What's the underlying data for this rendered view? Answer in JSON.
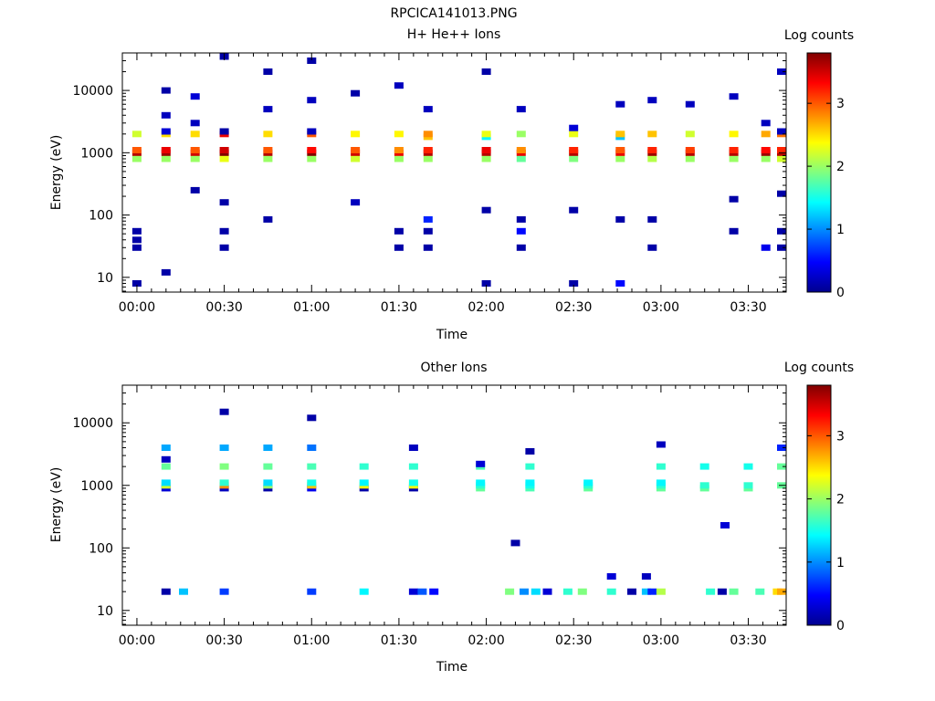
{
  "figure_title": "RPCICA141013.PNG",
  "chart_data": [
    {
      "type": "heatmap",
      "title": "H+ He++ Ions",
      "xlabel": "Time",
      "ylabel": "Energy (eV)",
      "x_unit": "minutes since 00:00",
      "xlim": [
        -5,
        223
      ],
      "y_scale": "log",
      "ylim": [
        5.8,
        40000
      ],
      "x_ticks": [
        0,
        30,
        60,
        90,
        120,
        150,
        180,
        210
      ],
      "x_tick_labels": [
        "00:00",
        "00:30",
        "01:00",
        "01:30",
        "02:00",
        "02:30",
        "03:00",
        "03:30"
      ],
      "y_ticks": [
        10,
        100,
        1000,
        10000
      ],
      "y_tick_labels": [
        "10",
        "100",
        "1000",
        "10000"
      ],
      "colorbar": {
        "label": "Log counts",
        "range": [
          0,
          3.8
        ],
        "ticks": [
          0,
          1,
          2,
          3
        ],
        "tick_labels": [
          "0",
          "1",
          "2",
          "3"
        ]
      },
      "cells": [
        [
          0,
          8,
          0.1
        ],
        [
          0,
          30,
          0.1
        ],
        [
          0,
          40,
          0.1
        ],
        [
          0,
          55,
          0.1
        ],
        [
          0,
          800,
          2.0
        ],
        [
          0,
          1000,
          3.6
        ],
        [
          0,
          1100,
          3.0
        ],
        [
          0,
          2000,
          2.2
        ],
        [
          10,
          12,
          0.1
        ],
        [
          10,
          800,
          2.0
        ],
        [
          10,
          1000,
          3.7
        ],
        [
          10,
          1100,
          3.4
        ],
        [
          10,
          2000,
          2.5
        ],
        [
          10,
          2200,
          0.3
        ],
        [
          10,
          4000,
          0.2
        ],
        [
          10,
          10000,
          0.1
        ],
        [
          20,
          250,
          0.1
        ],
        [
          20,
          800,
          2.0
        ],
        [
          20,
          1000,
          3.5
        ],
        [
          20,
          1100,
          3.0
        ],
        [
          20,
          2000,
          2.5
        ],
        [
          20,
          3000,
          0.2
        ],
        [
          20,
          8000,
          0.3
        ],
        [
          30,
          30,
          0.1
        ],
        [
          30,
          55,
          0.1
        ],
        [
          30,
          160,
          0.1
        ],
        [
          30,
          800,
          2.3
        ],
        [
          30,
          1000,
          3.8
        ],
        [
          30,
          1100,
          3.5
        ],
        [
          30,
          2000,
          3.4
        ],
        [
          30,
          2200,
          0.1
        ],
        [
          30,
          35000,
          0.1
        ],
        [
          45,
          85,
          0.1
        ],
        [
          45,
          800,
          2.0
        ],
        [
          45,
          1000,
          3.6
        ],
        [
          45,
          1100,
          3.0
        ],
        [
          45,
          2000,
          2.5
        ],
        [
          45,
          5000,
          0.2
        ],
        [
          45,
          20000,
          0.1
        ],
        [
          60,
          800,
          2.0
        ],
        [
          60,
          1000,
          3.8
        ],
        [
          60,
          1100,
          3.3
        ],
        [
          60,
          2000,
          3.0
        ],
        [
          60,
          2200,
          0.2
        ],
        [
          60,
          7000,
          0.2
        ],
        [
          60,
          30000,
          0.1
        ],
        [
          75,
          160,
          0.2
        ],
        [
          75,
          800,
          2.2
        ],
        [
          75,
          1000,
          3.5
        ],
        [
          75,
          1100,
          3.0
        ],
        [
          75,
          2000,
          2.4
        ],
        [
          75,
          9000,
          0.1
        ],
        [
          90,
          30,
          0.1
        ],
        [
          90,
          55,
          0.1
        ],
        [
          90,
          800,
          2.0
        ],
        [
          90,
          1000,
          3.4
        ],
        [
          90,
          1100,
          2.8
        ],
        [
          90,
          2000,
          2.4
        ],
        [
          90,
          12000,
          0.2
        ],
        [
          100,
          30,
          0.1
        ],
        [
          100,
          55,
          0.1
        ],
        [
          100,
          85,
          0.6
        ],
        [
          100,
          800,
          2.0
        ],
        [
          100,
          1000,
          3.6
        ],
        [
          100,
          1100,
          3.2
        ],
        [
          100,
          1800,
          2.6
        ],
        [
          100,
          2000,
          2.8
        ],
        [
          100,
          5000,
          0.2
        ],
        [
          120,
          8,
          0.1
        ],
        [
          120,
          120,
          0.1
        ],
        [
          120,
          800,
          2.0
        ],
        [
          120,
          1000,
          3.6
        ],
        [
          120,
          1100,
          3.4
        ],
        [
          120,
          1800,
          1.4
        ],
        [
          120,
          2000,
          2.3
        ],
        [
          120,
          20000,
          0.1
        ],
        [
          132,
          30,
          0.1
        ],
        [
          132,
          55,
          0.5
        ],
        [
          132,
          85,
          0.1
        ],
        [
          132,
          800,
          1.8
        ],
        [
          132,
          1000,
          3.4
        ],
        [
          132,
          1100,
          2.8
        ],
        [
          132,
          2000,
          2.0
        ],
        [
          132,
          5000,
          0.2
        ],
        [
          150,
          8,
          0.1
        ],
        [
          150,
          120,
          0.1
        ],
        [
          150,
          800,
          1.9
        ],
        [
          150,
          1000,
          3.6
        ],
        [
          150,
          1100,
          3.2
        ],
        [
          150,
          2000,
          2.3
        ],
        [
          150,
          2500,
          0.3
        ],
        [
          166,
          8,
          0.5
        ],
        [
          166,
          85,
          0.1
        ],
        [
          166,
          800,
          2.0
        ],
        [
          166,
          1000,
          3.4
        ],
        [
          166,
          1100,
          3.0
        ],
        [
          166,
          1800,
          1.2
        ],
        [
          166,
          2000,
          2.6
        ],
        [
          166,
          6000,
          0.2
        ],
        [
          177,
          30,
          0.1
        ],
        [
          177,
          85,
          0.1
        ],
        [
          177,
          800,
          2.1
        ],
        [
          177,
          1000,
          3.7
        ],
        [
          177,
          1100,
          3.2
        ],
        [
          177,
          2000,
          2.6
        ],
        [
          177,
          7000,
          0.2
        ],
        [
          190,
          800,
          2.0
        ],
        [
          190,
          1000,
          3.6
        ],
        [
          190,
          1100,
          3.1
        ],
        [
          190,
          2000,
          2.2
        ],
        [
          190,
          6000,
          0.2
        ],
        [
          205,
          55,
          0.1
        ],
        [
          205,
          180,
          0.1
        ],
        [
          205,
          800,
          2.0
        ],
        [
          205,
          1000,
          3.6
        ],
        [
          205,
          1100,
          3.2
        ],
        [
          205,
          2000,
          2.4
        ],
        [
          205,
          8000,
          0.2
        ],
        [
          216,
          30,
          0.4
        ],
        [
          216,
          800,
          2.0
        ],
        [
          216,
          1000,
          3.7
        ],
        [
          216,
          1100,
          3.3
        ],
        [
          216,
          2000,
          2.7
        ],
        [
          216,
          3000,
          0.2
        ],
        [
          223,
          30,
          0.1
        ],
        [
          223,
          55,
          0.1
        ],
        [
          223,
          220,
          0.1
        ],
        [
          223,
          800,
          2.2
        ],
        [
          223,
          1000,
          3.6
        ],
        [
          223,
          1100,
          3.2
        ],
        [
          223,
          2000,
          2.9
        ],
        [
          223,
          2200,
          0.2
        ],
        [
          223,
          20000,
          0.2
        ]
      ]
    },
    {
      "type": "heatmap",
      "title": "Other Ions",
      "xlabel": "Time",
      "ylabel": "Energy (eV)",
      "x_unit": "minutes since 00:00",
      "xlim": [
        -5,
        223
      ],
      "y_scale": "log",
      "ylim": [
        5.8,
        40000
      ],
      "x_ticks": [
        0,
        30,
        60,
        90,
        120,
        150,
        180,
        210
      ],
      "x_tick_labels": [
        "00:00",
        "00:30",
        "01:00",
        "01:30",
        "02:00",
        "02:30",
        "03:00",
        "03:30"
      ],
      "y_ticks": [
        10,
        100,
        1000,
        10000
      ],
      "y_tick_labels": [
        "10",
        "100",
        "1000",
        "10000"
      ],
      "colorbar": {
        "label": "Log counts",
        "range": [
          0,
          3.8
        ],
        "ticks": [
          0,
          1,
          2,
          3
        ],
        "tick_labels": [
          "0",
          "1",
          "2",
          "3"
        ]
      },
      "cells": [
        [
          10,
          20,
          0.1
        ],
        [
          10,
          900,
          0.3
        ],
        [
          10,
          1000,
          2.2
        ],
        [
          10,
          1100,
          1.3
        ],
        [
          10,
          2000,
          1.8
        ],
        [
          10,
          4000,
          1.1
        ],
        [
          10,
          2600,
          0.2
        ],
        [
          16,
          20,
          1.2
        ],
        [
          30,
          20,
          0.7
        ],
        [
          30,
          900,
          0.2
        ],
        [
          30,
          1000,
          2.8
        ],
        [
          30,
          1100,
          1.6
        ],
        [
          30,
          2000,
          1.9
        ],
        [
          30,
          4000,
          1.1
        ],
        [
          30,
          15000,
          0.1
        ],
        [
          45,
          900,
          0.1
        ],
        [
          45,
          1000,
          2.0
        ],
        [
          45,
          1100,
          1.3
        ],
        [
          45,
          2000,
          1.8
        ],
        [
          45,
          4000,
          1.1
        ],
        [
          60,
          20,
          0.7
        ],
        [
          60,
          900,
          0.4
        ],
        [
          60,
          1000,
          2.6
        ],
        [
          60,
          1100,
          1.5
        ],
        [
          60,
          2000,
          1.7
        ],
        [
          60,
          4000,
          0.9
        ],
        [
          60,
          12000,
          0.1
        ],
        [
          78,
          20,
          1.4
        ],
        [
          78,
          900,
          0.1
        ],
        [
          78,
          1000,
          2.4
        ],
        [
          78,
          1100,
          1.4
        ],
        [
          78,
          2000,
          1.6
        ],
        [
          95,
          20,
          0.3
        ],
        [
          98,
          20,
          0.8
        ],
        [
          102,
          20,
          0.5
        ],
        [
          95,
          900,
          0.1
        ],
        [
          95,
          1000,
          2.4
        ],
        [
          95,
          1100,
          1.5
        ],
        [
          95,
          2000,
          1.6
        ],
        [
          95,
          4000,
          0.2
        ],
        [
          118,
          900,
          1.8
        ],
        [
          118,
          1000,
          1.6
        ],
        [
          118,
          1100,
          1.4
        ],
        [
          118,
          2000,
          1.7
        ],
        [
          118,
          2200,
          0.3
        ],
        [
          128,
          20,
          1.9
        ],
        [
          130,
          120,
          0.1
        ],
        [
          133,
          20,
          1.0
        ],
        [
          137,
          20,
          1.3
        ],
        [
          141,
          20,
          0.3
        ],
        [
          148,
          20,
          1.6
        ],
        [
          153,
          20,
          1.9
        ],
        [
          135,
          900,
          1.7
        ],
        [
          135,
          1000,
          1.5
        ],
        [
          135,
          1100,
          1.4
        ],
        [
          135,
          2000,
          1.6
        ],
        [
          135,
          3500,
          0.1
        ],
        [
          155,
          900,
          1.8
        ],
        [
          155,
          1000,
          1.6
        ],
        [
          155,
          1100,
          1.4
        ],
        [
          163,
          20,
          1.6
        ],
        [
          163,
          35,
          0.3
        ],
        [
          170,
          20,
          0.1
        ],
        [
          175,
          20,
          1.2
        ],
        [
          177,
          20,
          0.6
        ],
        [
          175,
          35,
          0.2
        ],
        [
          180,
          20,
          2.1
        ],
        [
          180,
          900,
          1.8
        ],
        [
          180,
          1000,
          1.6
        ],
        [
          180,
          1100,
          1.4
        ],
        [
          180,
          2000,
          1.6
        ],
        [
          180,
          4500,
          0.2
        ],
        [
          195,
          900,
          1.8
        ],
        [
          195,
          1000,
          1.6
        ],
        [
          195,
          2000,
          1.5
        ],
        [
          197,
          20,
          1.6
        ],
        [
          201,
          20,
          0.1
        ],
        [
          205,
          20,
          1.8
        ],
        [
          202,
          230,
          0.3
        ],
        [
          210,
          900,
          1.8
        ],
        [
          210,
          1000,
          1.6
        ],
        [
          210,
          2000,
          1.5
        ],
        [
          214,
          20,
          1.7
        ],
        [
          220,
          20,
          2.5
        ],
        [
          223,
          20,
          2.7
        ],
        [
          223,
          1000,
          1.8
        ],
        [
          223,
          2000,
          1.8
        ],
        [
          223,
          4000,
          0.6
        ]
      ]
    }
  ]
}
